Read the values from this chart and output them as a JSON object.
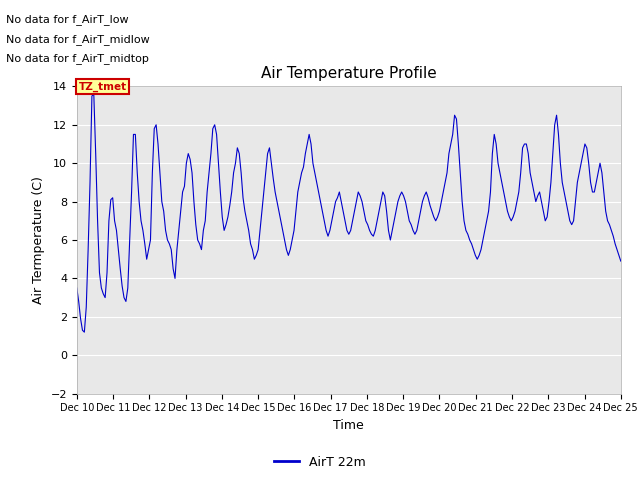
{
  "title": "Air Temperature Profile",
  "xlabel": "Time",
  "ylabel": "Air Termperature (C)",
  "ylim": [
    -2,
    14
  ],
  "yticks": [
    -2,
    0,
    2,
    4,
    6,
    8,
    10,
    12,
    14
  ],
  "plot_bg_color": "#e8e8e8",
  "fig_bg_color": "#ffffff",
  "line_color": "#0000cc",
  "legend_label": "AirT 22m",
  "no_data_texts": [
    "No data for f_AirT_low",
    "No data for f_AirT_midlow",
    "No data for f_AirT_midtop"
  ],
  "tz_label": "TZ_tmet",
  "xtick_labels": [
    "Dec 10",
    "Dec 11",
    "Dec 12",
    "Dec 13",
    "Dec 14",
    "Dec 15",
    "Dec 16",
    "Dec 17",
    "Dec 18",
    "Dec 19",
    "Dec 20",
    "Dec 21",
    "Dec 22",
    "Dec 23",
    "Dec 24",
    "Dec 25"
  ],
  "time_series": [
    3.5,
    2.8,
    1.9,
    1.3,
    1.2,
    2.5,
    5.5,
    9.0,
    13.5,
    13.6,
    10.5,
    7.0,
    4.3,
    3.5,
    3.2,
    3.0,
    4.3,
    7.0,
    8.1,
    8.2,
    7.0,
    6.5,
    5.5,
    4.5,
    3.6,
    3.0,
    2.8,
    3.5,
    6.0,
    8.5,
    11.5,
    11.5,
    9.5,
    8.0,
    7.0,
    6.5,
    5.8,
    5.0,
    5.5,
    6.0,
    9.5,
    11.8,
    12.0,
    11.0,
    9.5,
    8.0,
    7.5,
    6.5,
    6.0,
    5.8,
    5.5,
    4.5,
    4.0,
    5.5,
    6.5,
    7.5,
    8.5,
    8.8,
    10.0,
    10.5,
    10.2,
    9.5,
    8.0,
    6.8,
    6.0,
    5.8,
    5.5,
    6.5,
    7.0,
    8.5,
    9.5,
    10.5,
    11.8,
    12.0,
    11.5,
    10.0,
    8.5,
    7.2,
    6.5,
    6.8,
    7.2,
    7.8,
    8.5,
    9.5,
    10.0,
    10.8,
    10.5,
    9.5,
    8.2,
    7.5,
    7.0,
    6.5,
    5.8,
    5.5,
    5.0,
    5.2,
    5.5,
    6.5,
    7.5,
    8.5,
    9.5,
    10.5,
    10.8,
    10.0,
    9.2,
    8.5,
    8.0,
    7.5,
    7.0,
    6.5,
    6.0,
    5.5,
    5.2,
    5.5,
    6.0,
    6.5,
    7.5,
    8.5,
    9.0,
    9.5,
    9.8,
    10.5,
    11.0,
    11.5,
    11.0,
    10.0,
    9.5,
    9.0,
    8.5,
    8.0,
    7.5,
    7.0,
    6.5,
    6.2,
    6.5,
    7.0,
    7.5,
    8.0,
    8.2,
    8.5,
    8.0,
    7.5,
    7.0,
    6.5,
    6.3,
    6.5,
    7.0,
    7.5,
    8.0,
    8.5,
    8.3,
    8.0,
    7.5,
    7.0,
    6.8,
    6.5,
    6.3,
    6.2,
    6.5,
    7.0,
    7.5,
    8.0,
    8.5,
    8.3,
    7.5,
    6.5,
    6.0,
    6.5,
    7.0,
    7.5,
    8.0,
    8.3,
    8.5,
    8.3,
    8.0,
    7.5,
    7.0,
    6.8,
    6.5,
    6.3,
    6.5,
    7.0,
    7.5,
    8.0,
    8.3,
    8.5,
    8.2,
    7.8,
    7.5,
    7.2,
    7.0,
    7.2,
    7.5,
    8.0,
    8.5,
    9.0,
    9.5,
    10.5,
    11.0,
    11.5,
    12.5,
    12.3,
    11.0,
    9.5,
    8.0,
    7.0,
    6.5,
    6.3,
    6.0,
    5.8,
    5.5,
    5.2,
    5.0,
    5.2,
    5.5,
    6.0,
    6.5,
    7.0,
    7.5,
    8.5,
    10.5,
    11.5,
    11.0,
    10.0,
    9.5,
    9.0,
    8.5,
    8.0,
    7.5,
    7.2,
    7.0,
    7.2,
    7.5,
    8.0,
    8.5,
    9.5,
    10.8,
    11.0,
    11.0,
    10.5,
    9.5,
    9.0,
    8.5,
    8.0,
    8.3,
    8.5,
    8.0,
    7.5,
    7.0,
    7.2,
    8.0,
    9.0,
    10.5,
    12.0,
    12.5,
    11.5,
    10.0,
    9.0,
    8.5,
    8.0,
    7.5,
    7.0,
    6.8,
    7.0,
    8.0,
    9.0,
    9.5,
    10.0,
    10.5,
    11.0,
    10.8,
    10.0,
    9.0,
    8.5,
    8.5,
    9.0,
    9.5,
    10.0,
    9.5,
    8.5,
    7.5,
    7.0,
    6.8,
    6.5,
    6.2,
    5.8,
    5.5,
    5.2,
    4.9
  ]
}
